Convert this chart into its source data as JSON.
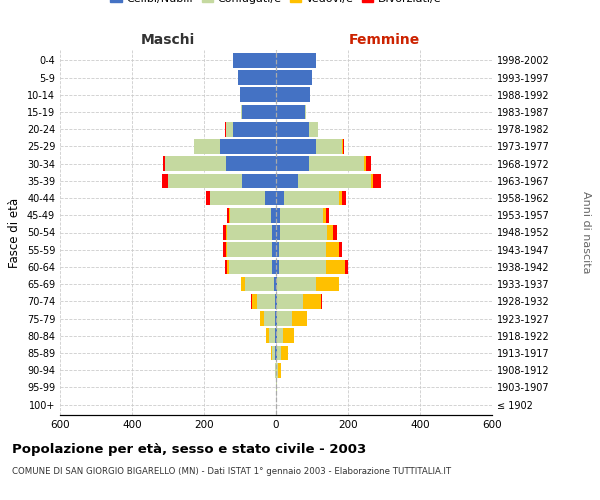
{
  "age_groups": [
    "100+",
    "95-99",
    "90-94",
    "85-89",
    "80-84",
    "75-79",
    "70-74",
    "65-69",
    "60-64",
    "55-59",
    "50-54",
    "45-49",
    "40-44",
    "35-39",
    "30-34",
    "25-29",
    "20-24",
    "15-19",
    "10-14",
    "5-9",
    "0-4"
  ],
  "birth_years": [
    "≤ 1902",
    "1903-1907",
    "1908-1912",
    "1913-1917",
    "1918-1922",
    "1923-1927",
    "1928-1932",
    "1933-1937",
    "1938-1942",
    "1943-1947",
    "1948-1952",
    "1953-1957",
    "1958-1962",
    "1963-1967",
    "1968-1972",
    "1973-1977",
    "1978-1982",
    "1983-1987",
    "1988-1992",
    "1993-1997",
    "1998-2002"
  ],
  "male_celibi": [
    0,
    0,
    0,
    2,
    2,
    2,
    3,
    5,
    10,
    12,
    12,
    14,
    30,
    95,
    140,
    155,
    120,
    95,
    100,
    105,
    120
  ],
  "male_coniugati": [
    0,
    0,
    2,
    8,
    18,
    30,
    50,
    82,
    120,
    125,
    125,
    115,
    152,
    205,
    168,
    72,
    20,
    2,
    0,
    0,
    0
  ],
  "male_vedovi": [
    0,
    0,
    0,
    3,
    8,
    12,
    15,
    10,
    5,
    3,
    2,
    1,
    1,
    1,
    1,
    0,
    0,
    0,
    0,
    0,
    0
  ],
  "male_divorziati": [
    0,
    0,
    0,
    0,
    1,
    1,
    1,
    1,
    8,
    8,
    8,
    5,
    12,
    15,
    5,
    2,
    1,
    0,
    0,
    0,
    0
  ],
  "female_nubili": [
    0,
    0,
    0,
    2,
    2,
    2,
    2,
    4,
    8,
    8,
    10,
    12,
    22,
    62,
    92,
    112,
    92,
    80,
    95,
    100,
    110
  ],
  "female_coniugate": [
    0,
    2,
    5,
    12,
    18,
    42,
    72,
    108,
    132,
    132,
    132,
    118,
    152,
    202,
    152,
    72,
    26,
    2,
    0,
    0,
    0
  ],
  "female_vedove": [
    0,
    2,
    8,
    18,
    30,
    42,
    52,
    62,
    52,
    36,
    16,
    10,
    8,
    5,
    5,
    2,
    0,
    0,
    0,
    0,
    0
  ],
  "female_divorziate": [
    0,
    0,
    1,
    1,
    1,
    1,
    1,
    2,
    8,
    8,
    12,
    8,
    12,
    22,
    15,
    2,
    0,
    0,
    0,
    0,
    0
  ],
  "color_celibi": "#4472C4",
  "color_coniugati": "#C5D9A0",
  "color_vedovi": "#FFC000",
  "color_divorziati": "#FF0000",
  "xlim": 600,
  "title": "Popolazione per età, sesso e stato civile - 2003",
  "subtitle": "COMUNE DI SAN GIORGIO BIGARELLO (MN) - Dati ISTAT 1° gennaio 2003 - Elaborazione TUTTITALIA.IT",
  "ylabel_left": "Fasce di età",
  "ylabel_right": "Anni di nascita",
  "label_maschi": "Maschi",
  "label_femmine": "Femmine"
}
